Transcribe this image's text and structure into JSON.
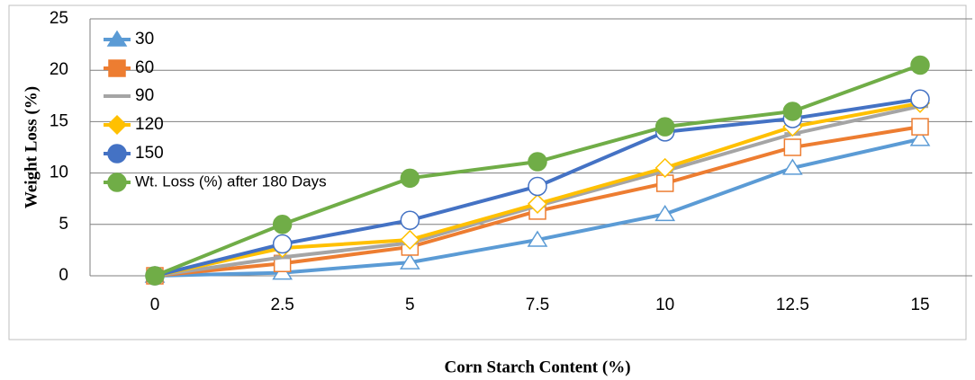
{
  "chart_data": {
    "type": "line",
    "x_label": "Corn Starch Content (%)",
    "y_label": "Weight Loss (%)",
    "categories": [
      "0",
      "2.5",
      "5",
      "7.5",
      "10",
      "12.5",
      "15"
    ],
    "series": [
      {
        "name": "30",
        "color": "#5b9bd5",
        "marker": "triangle",
        "values": [
          0,
          0.3,
          1.3,
          3.5,
          6,
          10.5,
          13.3
        ]
      },
      {
        "name": "60",
        "color": "#ed7d31",
        "marker": "square",
        "values": [
          0,
          1.2,
          2.8,
          6.3,
          9,
          12.5,
          14.5
        ]
      },
      {
        "name": "90",
        "color": "#a5a5a5",
        "marker": "dash",
        "values": [
          0,
          1.8,
          3.2,
          6.8,
          10.2,
          13.8,
          16.5
        ]
      },
      {
        "name": "120",
        "color": "#ffc000",
        "marker": "diamond",
        "values": [
          0,
          2.7,
          3.5,
          7,
          10.5,
          14.5,
          16.8
        ]
      },
      {
        "name": "150",
        "color": "#4472c4",
        "marker": "circle",
        "values": [
          0,
          3.1,
          5.4,
          8.7,
          14,
          15.3,
          17.2
        ]
      },
      {
        "name": "Wt. Loss (%) after 180 Days",
        "color": "#70ad47",
        "marker": "filled-circle",
        "values": [
          0,
          5,
          9.5,
          11.1,
          14.5,
          16,
          20.5
        ]
      }
    ],
    "ylim": [
      0,
      25
    ],
    "yticks": [
      0,
      5,
      10,
      15,
      20,
      25
    ],
    "grid": true,
    "legend": "left"
  }
}
